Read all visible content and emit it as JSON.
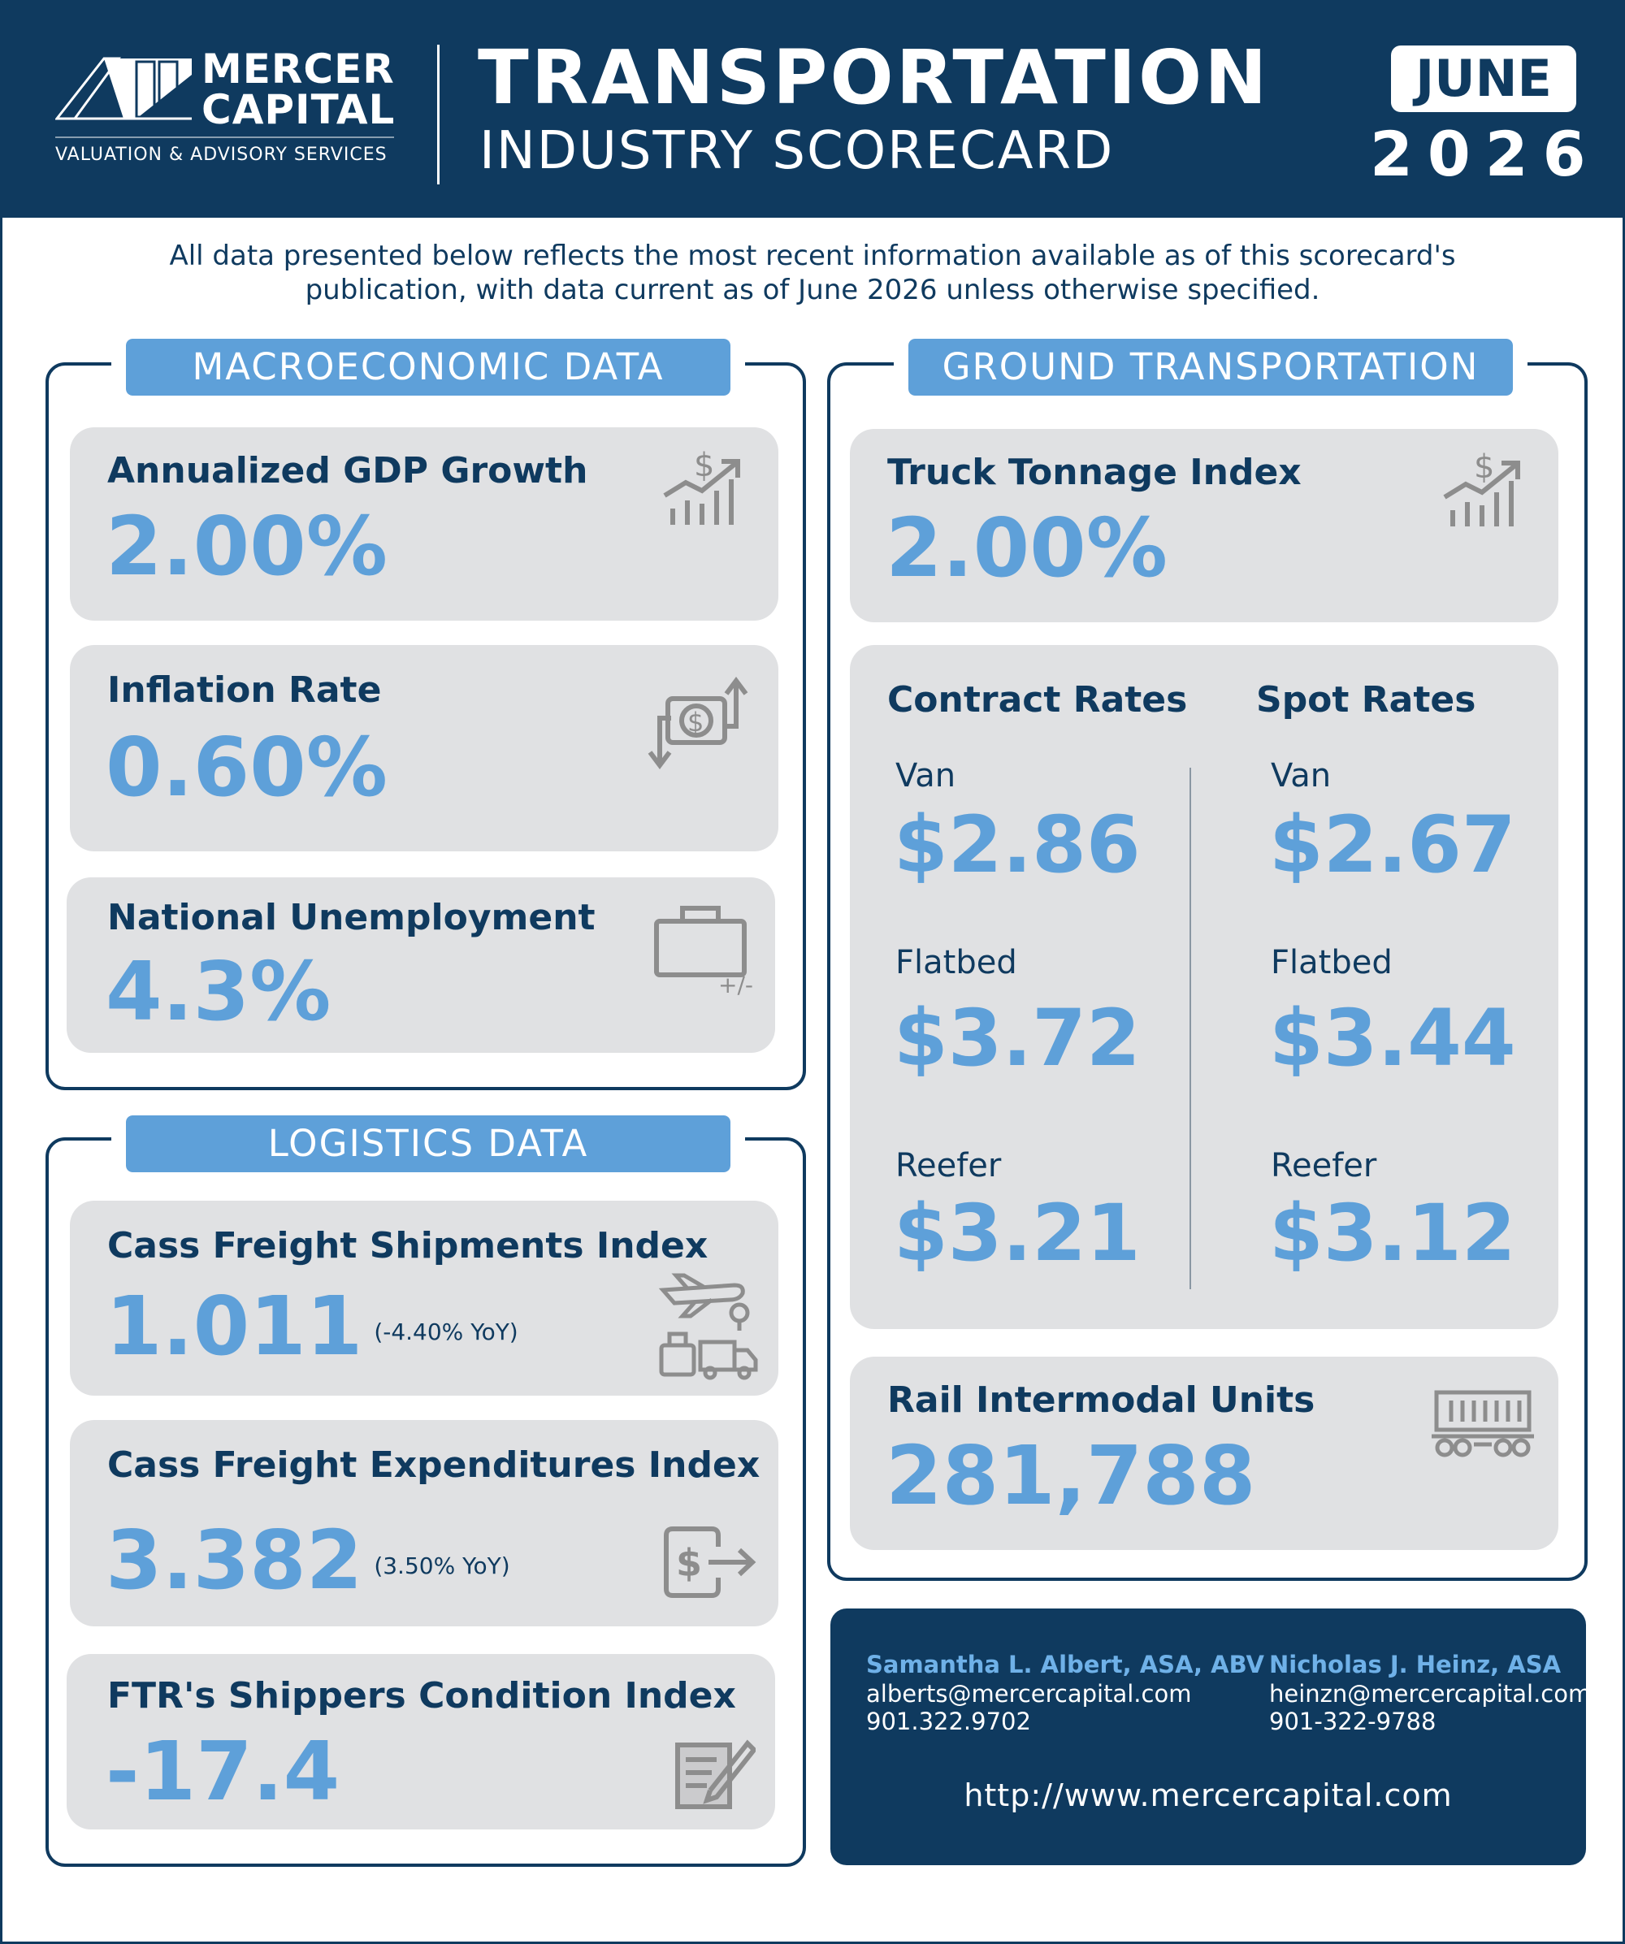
{
  "header": {
    "company_line1": "MERCER",
    "company_line2": "CAPITAL",
    "tagline": "VALUATION & ADVISORY SERVICES",
    "title_line1": "TRANSPORTATION",
    "title_line2": "INDUSTRY SCORECARD",
    "month": "JUNE",
    "year": "2026"
  },
  "intro": "All data presented below reflects the most recent information available as of this scorecard's publication, with data current as of June 2026 unless otherwise specified.",
  "macro": {
    "title": "MACROECONOMIC DATA",
    "gdp": {
      "label": "Annualized GDP Growth",
      "value": "2.00%",
      "icon": "dollar-growth-chart-icon"
    },
    "inflation": {
      "label": "Inflation Rate",
      "value": "0.60%",
      "icon": "dollar-up-down-arrows-icon"
    },
    "unemployment": {
      "label": "National Unemployment",
      "value": "4.3%",
      "icon": "briefcase-plus-minus-icon"
    }
  },
  "logistics": {
    "title": "LOGISTICS DATA",
    "shipments": {
      "label": "Cass Freight Shipments Index",
      "value": "1.011",
      "note": "(-4.40% YoY)",
      "icon": "freight-modes-icon"
    },
    "expenditures": {
      "label": "Cass Freight Expenditures Index",
      "value": "3.382",
      "note": "(3.50% YoY)",
      "icon": "dollar-exit-icon"
    },
    "shippers": {
      "label": "FTR's Shippers Condition Index",
      "value": "-17.4",
      "icon": "document-pen-icon"
    }
  },
  "ground": {
    "title": "GROUND TRANSPORTATION",
    "tonnage": {
      "label": "Truck Tonnage Index",
      "value": "2.00%",
      "icon": "dollar-growth-chart-icon"
    },
    "contract_head": "Contract Rates",
    "spot_head": "Spot Rates",
    "contract": {
      "van_label": "Van",
      "van": "$2.86",
      "flatbed_label": "Flatbed",
      "flatbed": "$3.72",
      "reefer_label": "Reefer",
      "reefer": "$3.21"
    },
    "spot": {
      "van_label": "Van",
      "van": "$2.67",
      "flatbed_label": "Flatbed",
      "flatbed": "$3.44",
      "reefer_label": "Reefer",
      "reefer": "$3.12"
    },
    "rail": {
      "label": "Rail Intermodal Units",
      "value": "281,788",
      "icon": "rail-car-icon"
    }
  },
  "contacts": {
    "person1": {
      "name": "Samantha L. Albert, ASA, ABV",
      "email": "alberts@mercercapital.com",
      "phone": "901.322.9702"
    },
    "person2": {
      "name": "Nicholas J. Heinz, ASA",
      "email": "heinzn@mercercapital.com",
      "phone": "901-322-9788"
    },
    "url": "http://www.mercercapital.com"
  },
  "colors": {
    "navy": "#0f3a5f",
    "accent_blue": "#5ea0d9",
    "card_gray": "#e0e1e3"
  }
}
